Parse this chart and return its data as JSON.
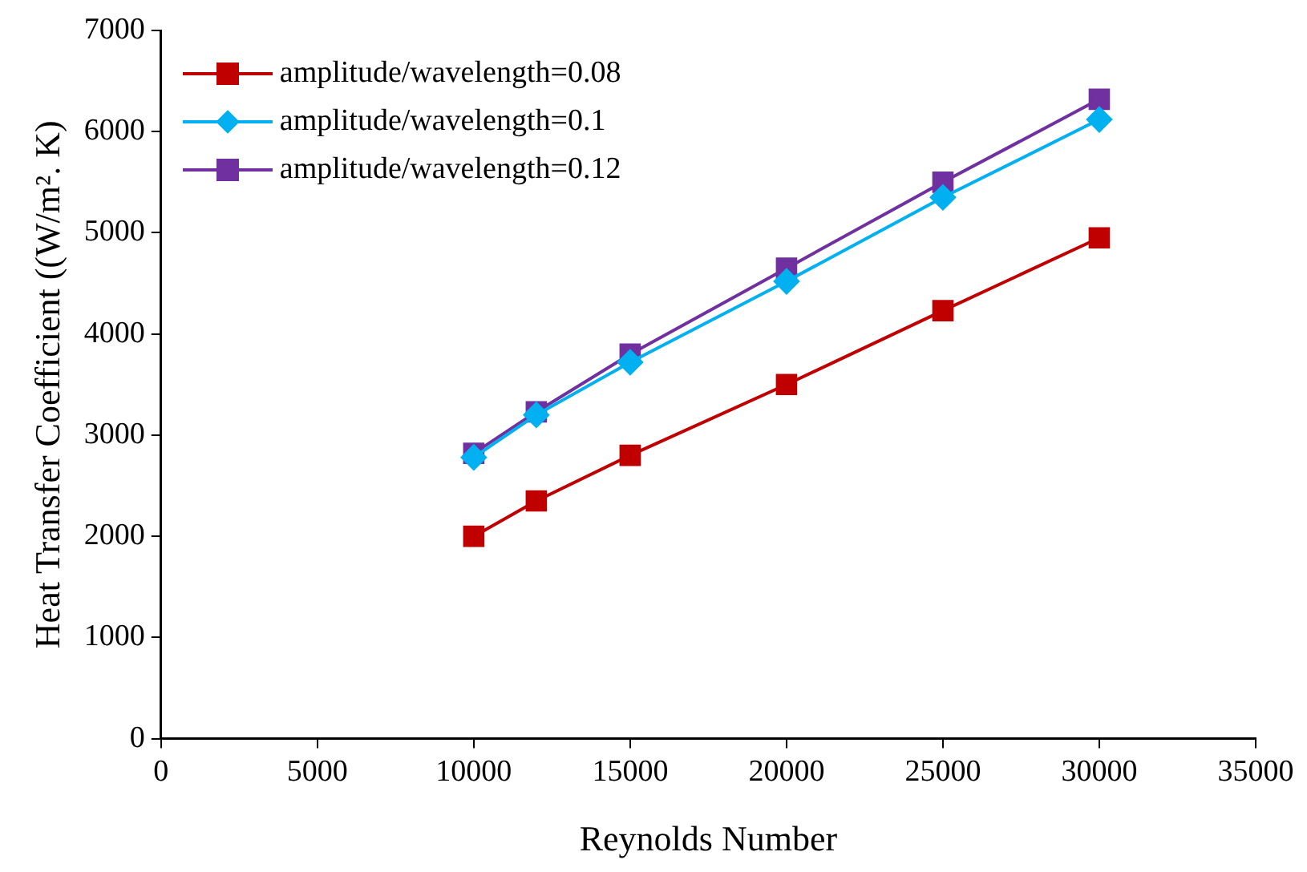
{
  "chart_data": {
    "type": "line",
    "xlabel": "Reynolds Number",
    "ylabel": "Heat Transfer Coefficient ((W/m². K)",
    "x": [
      10000,
      12000,
      15000,
      20000,
      25000,
      30000
    ],
    "series": [
      {
        "name": "amplitude/wavelength=0.08",
        "color": "#c00000",
        "marker": "square",
        "values": [
          2000,
          2350,
          2800,
          3500,
          4230,
          4950
        ]
      },
      {
        "name": "amplitude/wavelength=0.1",
        "color": "#00b0f0",
        "marker": "diamond",
        "values": [
          2780,
          3200,
          3720,
          4520,
          5350,
          6120
        ]
      },
      {
        "name": "amplitude/wavelength=0.12",
        "color": "#7030a0",
        "marker": "square",
        "values": [
          2820,
          3230,
          3800,
          4650,
          5500,
          6320
        ]
      }
    ],
    "xlim": [
      0,
      35000
    ],
    "xticks": [
      0,
      5000,
      10000,
      15000,
      20000,
      25000,
      30000,
      35000
    ],
    "ylim": [
      0,
      7000
    ],
    "yticks": [
      0,
      1000,
      2000,
      3000,
      4000,
      5000,
      6000,
      7000
    ],
    "grid": false,
    "legend": "top left",
    "line_style": "solid"
  }
}
